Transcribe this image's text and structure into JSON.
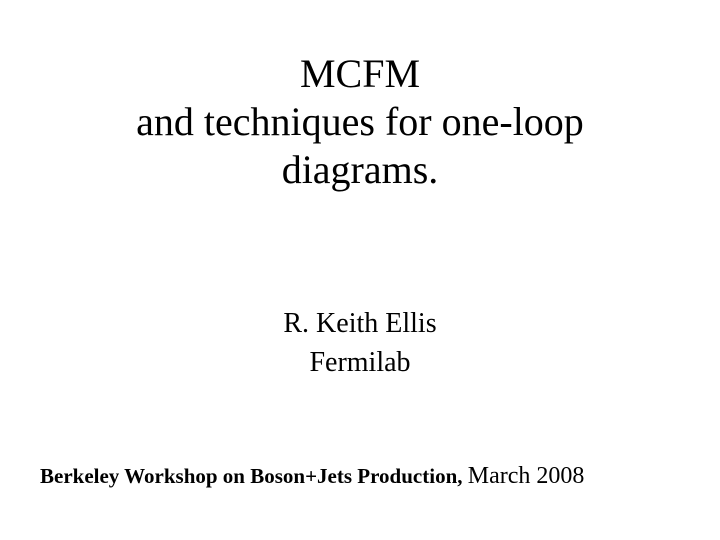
{
  "title": {
    "line1": "MCFM",
    "line2": "and techniques for one-loop",
    "line3": "diagrams.",
    "fontsize": 40,
    "color": "#000000"
  },
  "author": {
    "name": "R. Keith Ellis",
    "affiliation": "Fermilab",
    "fontsize": 28,
    "color": "#000000"
  },
  "footer": {
    "bold_part": "Berkeley Workshop on Boson+Jets Production, ",
    "date_part": "March 2008",
    "bold_fontsize": 21,
    "date_fontsize": 24,
    "color": "#000000"
  },
  "background_color": "#ffffff",
  "font_family": "Times New Roman"
}
